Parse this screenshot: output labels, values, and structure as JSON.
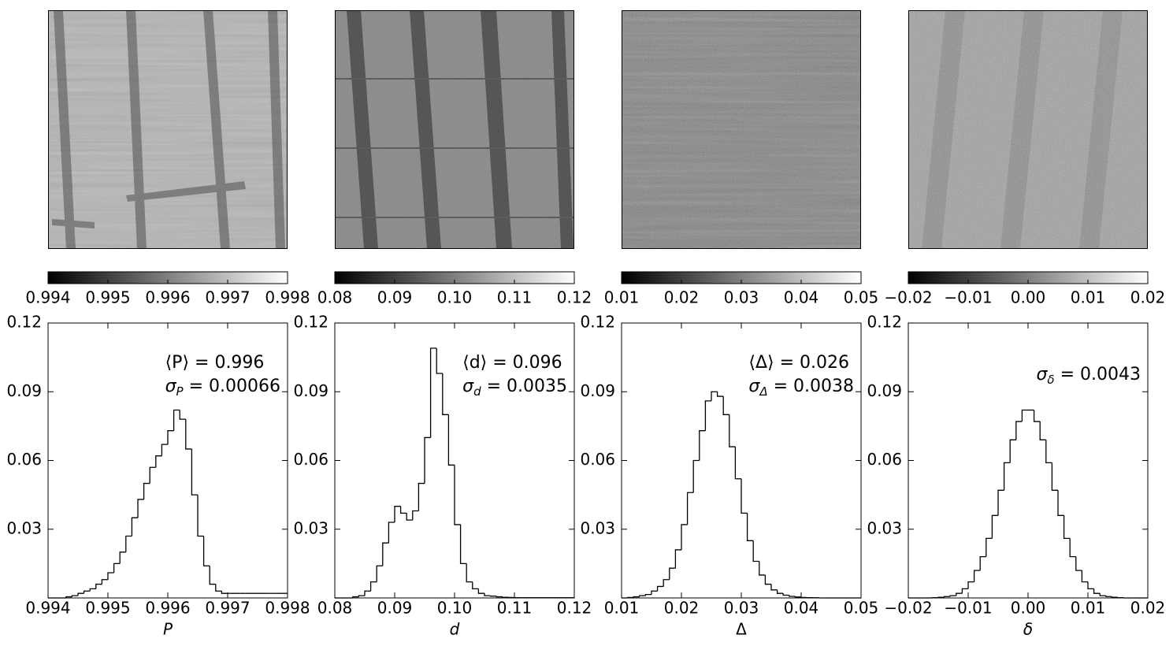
{
  "chart_data": [
    {
      "type": "colorbar",
      "xlim": [
        0.994,
        0.998
      ],
      "xticks": [
        0.994,
        0.995,
        0.996,
        0.997,
        0.998
      ]
    },
    {
      "type": "colorbar",
      "xlim": [
        0.08,
        0.12
      ],
      "xticks": [
        0.08,
        0.09,
        {
          "value": 0.1,
          "label": "0.10"
        },
        0.11,
        0.12
      ]
    },
    {
      "type": "colorbar",
      "xlim": [
        0.01,
        0.05
      ],
      "xticks": [
        0.01,
        0.02,
        0.03,
        0.04,
        0.05
      ]
    },
    {
      "type": "colorbar",
      "xlim": [
        -0.02,
        0.02
      ],
      "xticks": [
        {
          "value": -0.02,
          "label": "−0.02"
        },
        {
          "value": -0.01,
          "label": "−0.01"
        },
        {
          "value": 0,
          "label": "0.00"
        },
        0.01,
        0.02
      ]
    },
    {
      "type": "histogram",
      "xlabel": "P",
      "xlim": [
        0.994,
        0.998
      ],
      "xticks": [
        0.994,
        0.995,
        0.996,
        0.997,
        0.998
      ],
      "ylim": [
        0,
        0.12
      ],
      "yticks": [
        0.03,
        0.06,
        0.09,
        0.12
      ],
      "annotations": [
        [
          "⟨P⟩ = 0.996"
        ],
        [
          "σ",
          "P",
          " = 0.00066"
        ]
      ],
      "bins": [
        0.994,
        0.9941,
        0.9942,
        0.9943,
        0.9944,
        0.9945,
        0.9946,
        0.9947,
        0.9948,
        0.9949,
        0.995,
        0.9951,
        0.9952,
        0.9953,
        0.9954,
        0.9955,
        0.9956,
        0.9957,
        0.9958,
        0.9959,
        0.996,
        0.9961,
        0.9962,
        0.9963,
        0.9964,
        0.9965,
        0.9966,
        0.9967,
        0.9968,
        0.9969,
        0.997,
        0.9971,
        0.9972,
        0.9973,
        0.9974,
        0.9975,
        0.9976,
        0.9977,
        0.9978,
        0.9979,
        0.998
      ],
      "counts": [
        0,
        0,
        0,
        0.0005,
        0.001,
        0.002,
        0.003,
        0.004,
        0.006,
        0.008,
        0.011,
        0.015,
        0.02,
        0.027,
        0.035,
        0.043,
        0.05,
        0.057,
        0.062,
        0.067,
        0.073,
        0.082,
        0.078,
        0.065,
        0.045,
        0.027,
        0.014,
        0.006,
        0.003,
        0.002,
        0.002,
        0.002,
        0.002,
        0.002,
        0.002,
        0.002,
        0.002,
        0.002,
        0.002,
        0.002
      ]
    },
    {
      "type": "histogram",
      "xlabel": "d",
      "xlim": [
        0.08,
        0.12
      ],
      "xticks": [
        0.08,
        0.09,
        {
          "value": 0.1,
          "label": "0.10"
        },
        0.11,
        0.12
      ],
      "ylim": [
        0,
        0.12
      ],
      "yticks": [
        0.03,
        0.06,
        0.09,
        0.12
      ],
      "annotations": [
        [
          "⟨d⟩ = 0.096"
        ],
        [
          "σ",
          "d",
          " = 0.0035"
        ]
      ],
      "bins": [
        0.08,
        0.081,
        0.082,
        0.083,
        0.084,
        0.085,
        0.086,
        0.087,
        0.088,
        0.089,
        0.09,
        0.091,
        0.092,
        0.093,
        0.094,
        0.095,
        0.096,
        0.097,
        0.098,
        0.099,
        0.1,
        0.101,
        0.102,
        0.103,
        0.104,
        0.105,
        0.106,
        0.107,
        0.108,
        0.109,
        0.11,
        0.111,
        0.112,
        0.113,
        0.114,
        0.115,
        0.116,
        0.117,
        0.118,
        0.119,
        0.12
      ],
      "counts": [
        0,
        0,
        0,
        0.0005,
        0.001,
        0.003,
        0.007,
        0.014,
        0.024,
        0.033,
        0.04,
        0.037,
        0.034,
        0.038,
        0.05,
        0.07,
        0.109,
        0.098,
        0.08,
        0.058,
        0.032,
        0.015,
        0.007,
        0.004,
        0.002,
        0.001,
        0.0008,
        0.0005,
        0.0003,
        0.0002,
        0.0001,
        0.0001,
        0.0001,
        0.0001,
        0.0001,
        0.0001,
        0.0001,
        0.0001,
        0.0001,
        0.0001
      ]
    },
    {
      "type": "histogram",
      "xlabel": "Δ",
      "xlim": [
        0.01,
        0.05
      ],
      "xticks": [
        0.01,
        0.02,
        0.03,
        0.04,
        0.05
      ],
      "ylim": [
        0,
        0.12
      ],
      "yticks": [
        0.03,
        0.06,
        0.09,
        0.12
      ],
      "annotations": [
        [
          "⟨Δ⟩ = 0.026"
        ],
        [
          "σ",
          "Δ",
          " = 0.0038"
        ]
      ],
      "bins": [
        0.01,
        0.011,
        0.012,
        0.013,
        0.014,
        0.015,
        0.016,
        0.017,
        0.018,
        0.019,
        0.02,
        0.021,
        0.022,
        0.023,
        0.024,
        0.025,
        0.026,
        0.027,
        0.028,
        0.029,
        0.03,
        0.031,
        0.032,
        0.033,
        0.034,
        0.035,
        0.036,
        0.037,
        0.038,
        0.039,
        0.04,
        0.041,
        0.042,
        0.043,
        0.044,
        0.045,
        0.046,
        0.047,
        0.048,
        0.049,
        0.05
      ],
      "counts": [
        0,
        0.0002,
        0.0005,
        0.001,
        0.0015,
        0.003,
        0.005,
        0.008,
        0.013,
        0.021,
        0.032,
        0.046,
        0.06,
        0.073,
        0.086,
        0.09,
        0.088,
        0.08,
        0.066,
        0.052,
        0.037,
        0.025,
        0.016,
        0.01,
        0.006,
        0.0035,
        0.002,
        0.0012,
        0.0007,
        0.0004,
        0.0002,
        0.0001,
        0.0001,
        0,
        0,
        0,
        0,
        0,
        0,
        0
      ]
    },
    {
      "type": "histogram",
      "xlabel": "δ",
      "xlim": [
        -0.02,
        0.02
      ],
      "xticks": [
        {
          "value": -0.02,
          "label": "−0.02"
        },
        {
          "value": -0.01,
          "label": "−0.01"
        },
        {
          "value": 0,
          "label": "0.00"
        },
        0.01,
        0.02
      ],
      "ylim": [
        0,
        0.12
      ],
      "yticks": [
        0.03,
        0.06,
        0.09,
        0.12
      ],
      "annotations": [
        [
          "σ",
          "δ",
          " = 0.0043"
        ]
      ],
      "bins": [
        -0.02,
        -0.019,
        -0.018,
        -0.017,
        -0.016,
        -0.015,
        -0.014,
        -0.013,
        -0.012,
        -0.011,
        -0.01,
        -0.009,
        -0.008,
        -0.007,
        -0.006,
        -0.005,
        -0.004,
        -0.003,
        -0.002,
        -0.001,
        0,
        0.001,
        0.002,
        0.003,
        0.004,
        0.005,
        0.006,
        0.007,
        0.008,
        0.009,
        0.01,
        0.011,
        0.012,
        0.013,
        0.014,
        0.015,
        0.016,
        0.017,
        0.018,
        0.019,
        0.02
      ],
      "counts": [
        0,
        0,
        0,
        0,
        0.0001,
        0.0003,
        0.0006,
        0.001,
        0.002,
        0.004,
        0.007,
        0.012,
        0.018,
        0.026,
        0.036,
        0.047,
        0.059,
        0.069,
        0.077,
        0.082,
        0.082,
        0.077,
        0.069,
        0.059,
        0.047,
        0.036,
        0.026,
        0.018,
        0.012,
        0.007,
        0.004,
        0.002,
        0.001,
        0.0006,
        0.0003,
        0.0001,
        0,
        0,
        0,
        0
      ]
    }
  ]
}
